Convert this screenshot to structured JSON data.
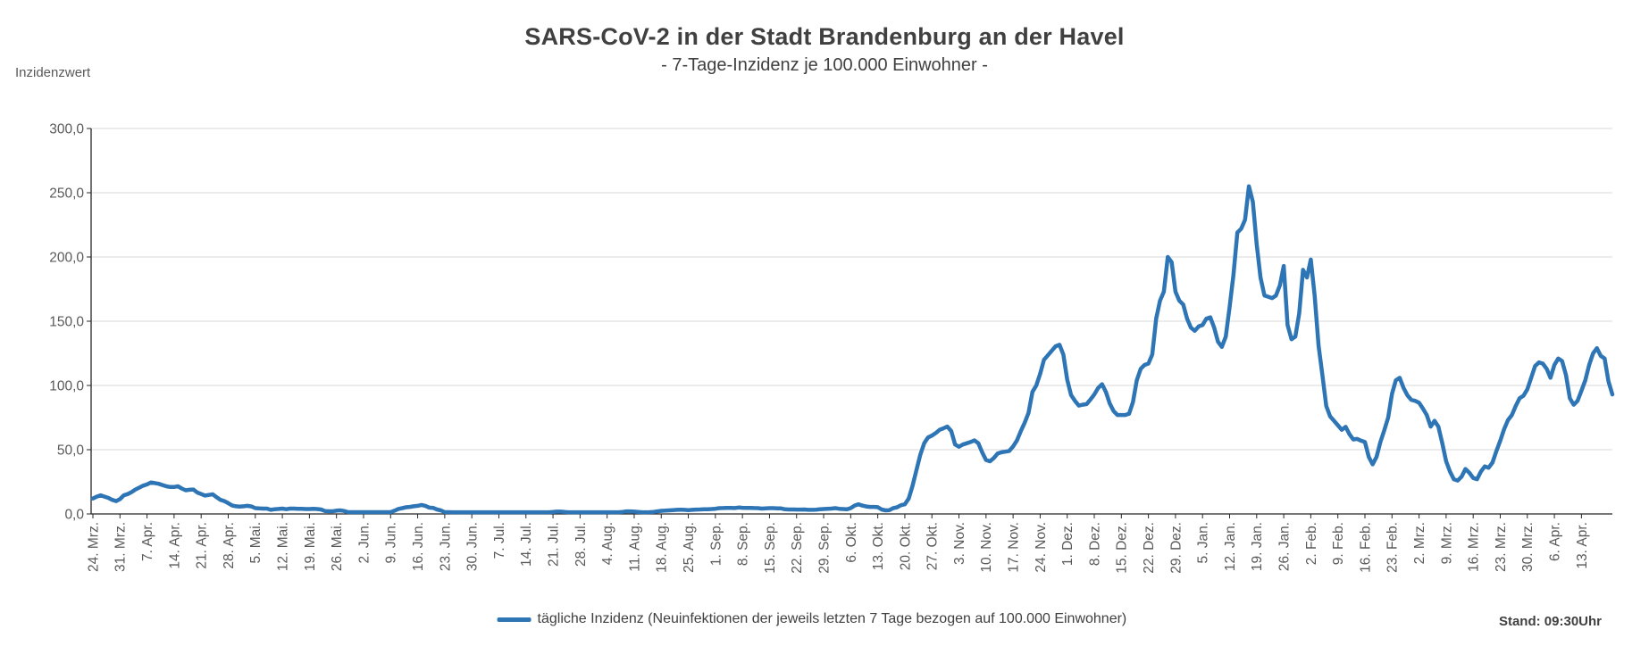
{
  "chart_data": {
    "type": "line",
    "title": "SARS-CoV-2 in der Stadt Brandenburg an der Havel",
    "subtitle": "- 7-Tage-Inzidenz je 100.000 Einwohner -",
    "y_axis_area_label": "Inzidenzwert",
    "ylabel": "Inzidenzwert",
    "xlabel": "",
    "y_min": 0,
    "y_max": 300,
    "y_step": 50,
    "y_tick_labels": [
      "300,0",
      "250,0",
      "200,0",
      "150,0",
      "100,0",
      "50,0",
      "0,0"
    ],
    "x_tick_labels": [
      "24. Mrz.",
      "31. Mrz.",
      "7. Apr.",
      "14. Apr.",
      "21. Apr.",
      "28. Apr.",
      "5. Mai.",
      "12. Mai.",
      "19. Mai.",
      "26. Mai.",
      "2. Jun.",
      "9. Jun.",
      "16. Jun.",
      "23. Jun.",
      "30. Jun.",
      "7. Jul.",
      "14. Jul.",
      "21. Jul.",
      "28. Jul.",
      "4. Aug.",
      "11. Aug.",
      "18. Aug.",
      "25. Aug.",
      "1. Sep.",
      "8. Sep.",
      "15. Sep.",
      "22. Sep.",
      "29. Sep.",
      "6. Okt.",
      "13. Okt.",
      "20. Okt.",
      "27. Okt.",
      "3. Nov.",
      "10. Nov.",
      "17. Nov.",
      "24. Nov.",
      "1. Dez.",
      "8. Dez.",
      "15. Dez.",
      "22. Dez.",
      "29. Dez.",
      "5. Jan.",
      "12. Jan.",
      "19. Jan.",
      "26. Jan.",
      "2. Feb.",
      "9. Feb.",
      "16. Feb.",
      "23. Feb.",
      "2. Mrz.",
      "9. Mrz.",
      "16. Mrz.",
      "23. Mrz.",
      "30. Mrz.",
      "6. Apr.",
      "13. Apr."
    ],
    "x_tick_every_n_points": 7,
    "grid": "horizontal",
    "legend_position": "bottom",
    "series": [
      {
        "name": "tägliche Inzidenz (Neuinfektionen der jeweils letzten 7 Tage bezogen auf 100.000 Einwohner)",
        "color": "#2E75B6",
        "values": [
          12,
          13.5,
          14.5,
          13.5,
          12.5,
          11,
          10,
          11.5,
          14.5,
          15.5,
          17,
          19,
          20.5,
          22,
          23,
          24.5,
          24,
          23.5,
          22.5,
          21.5,
          21,
          21,
          21.5,
          19.8,
          18.4,
          18.8,
          19,
          16.7,
          15.5,
          14.3,
          14.8,
          15.3,
          13,
          11,
          10,
          8.4,
          6.6,
          6,
          5.7,
          6,
          6.3,
          5.8,
          4.5,
          4.3,
          4.2,
          4.2,
          3.2,
          3.7,
          3.9,
          4.2,
          3.7,
          4.2,
          4.2,
          4,
          4,
          3.8,
          3.8,
          4,
          3.8,
          3.5,
          2.3,
          2.1,
          2.1,
          2.6,
          2.8,
          2.3,
          1.4,
          1.4,
          1.4,
          1.4,
          1.4,
          1.4,
          1.4,
          1.4,
          1.4,
          1.4,
          1.4,
          1.4,
          2.5,
          3.9,
          4.5,
          5.2,
          5.5,
          6,
          6.3,
          7,
          6.3,
          4.9,
          4.7,
          3.5,
          2.8,
          1.4,
          1.4,
          1.3,
          1.3,
          1.3,
          1.3,
          1.3,
          1.3,
          1.3,
          1.3,
          1.3,
          1.3,
          1.3,
          1.3,
          1.3,
          1.3,
          1.3,
          1.3,
          1.3,
          1.3,
          1.3,
          1.3,
          1.3,
          1.3,
          1.3,
          1.3,
          1.3,
          1.3,
          1.5,
          1.8,
          1.8,
          1.5,
          1.3,
          1.3,
          1.3,
          1.3,
          1.3,
          1.3,
          1.3,
          1.3,
          1.3,
          1.3,
          1.3,
          1.3,
          1.3,
          1.3,
          1.6,
          2,
          2,
          1.8,
          1.5,
          1.3,
          1.3,
          1.4,
          1.6,
          2,
          2.4,
          2.6,
          2.8,
          3,
          3.2,
          3.3,
          3.2,
          3,
          3.2,
          3.4,
          3.5,
          3.6,
          3.7,
          3.8,
          4,
          4.5,
          4.6,
          4.7,
          4.7,
          4.6,
          5,
          4.8,
          4.7,
          4.7,
          4.6,
          4.5,
          4.2,
          4.4,
          4.5,
          4.5,
          4.4,
          4.3,
          3.6,
          3.5,
          3.5,
          3.4,
          3.4,
          3.5,
          3.2,
          3.2,
          3.3,
          3.6,
          3.8,
          4,
          4.2,
          4.5,
          4,
          3.8,
          3.6,
          4.5,
          6.5,
          7.5,
          6.5,
          5.8,
          5.5,
          5.5,
          5.3,
          3.5,
          2.8,
          3,
          4.5,
          5.2,
          6.8,
          7.5,
          12,
          22,
          34,
          46,
          55,
          59.5,
          61,
          63,
          65.5,
          66.7,
          68,
          64.5,
          54,
          52.3,
          54,
          55,
          56,
          57.3,
          55,
          48,
          42,
          41,
          43.5,
          47,
          48,
          48.5,
          49,
          52.5,
          57.3,
          64.5,
          71,
          78.7,
          95,
          100,
          109,
          120,
          123.5,
          127,
          130.5,
          131.7,
          124,
          104.5,
          92.6,
          88,
          84.3,
          85,
          85.5,
          89,
          93,
          98,
          101,
          95,
          86,
          80,
          77,
          77,
          77,
          78,
          87,
          104,
          113,
          116,
          117,
          124,
          152,
          166,
          173,
          200,
          196,
          173,
          166,
          163,
          152,
          145,
          142.5,
          146,
          147,
          152,
          153,
          145,
          134,
          130,
          138,
          161,
          186,
          219,
          222,
          229,
          255,
          243,
          210,
          184,
          170,
          169,
          168,
          170,
          178,
          193,
          147,
          136,
          138,
          156,
          190,
          184,
          198,
          170,
          131,
          108,
          84,
          76,
          72.5,
          69,
          65.5,
          67.8,
          62,
          58,
          58.4,
          57,
          56,
          44.4,
          38.6,
          44.4,
          56,
          65,
          75,
          93.5,
          104,
          106,
          98,
          92.3,
          88.8,
          88,
          86.5,
          82,
          77,
          68,
          72.5,
          68,
          55,
          41,
          33,
          27,
          26,
          29,
          35,
          32,
          28,
          27,
          33,
          37,
          36,
          40,
          49,
          57,
          66,
          73,
          77,
          84,
          90,
          92,
          97,
          106,
          115,
          118,
          117,
          113,
          106,
          116,
          121,
          119,
          108,
          90,
          85,
          88,
          96,
          104,
          116,
          125,
          129,
          123,
          121,
          103,
          93
        ]
      }
    ]
  },
  "footer": {
    "stand_label": "Stand: 09:30Uhr"
  },
  "colors": {
    "line": "#2E75B6",
    "grid": "#D9D9D9",
    "axis": "#262626",
    "tick_text": "#595959",
    "title_text": "#404040"
  }
}
